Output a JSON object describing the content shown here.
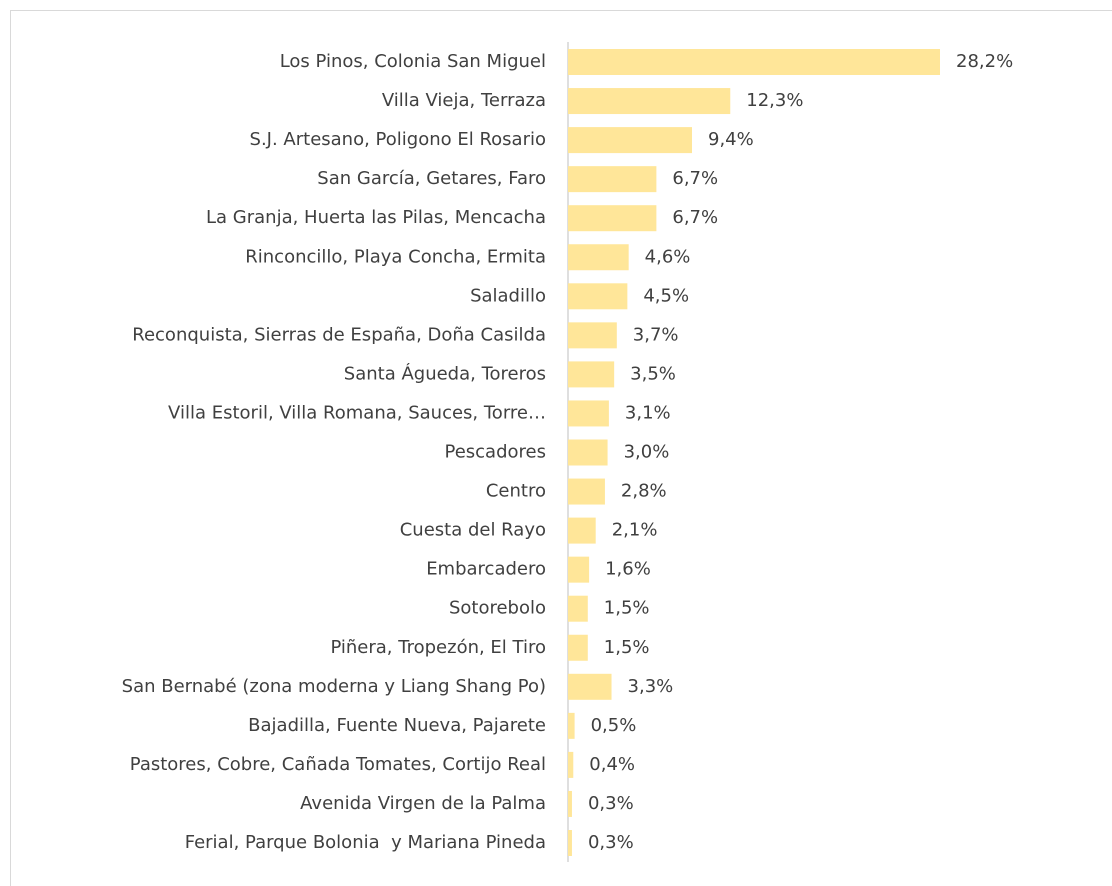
{
  "chart_data": {
    "type": "bar",
    "orientation": "horizontal",
    "color": "#ffe699",
    "categories": [
      "Los Pinos, Colonia San Miguel",
      "Villa Vieja, Terraza",
      "S.J. Artesano, Poligono El Rosario",
      "San García, Getares, Faro",
      "La Granja, Huerta las Pilas, Mencacha",
      "Rinconcillo, Playa Concha, Ermita",
      "Saladillo",
      "Reconquista, Sierras de España, Doña Casilda",
      "Santa Águeda, Toreros",
      "Villa Estoril, Villa Romana, Sauces, Torre…",
      "Pescadores",
      "Centro",
      "Cuesta del Rayo",
      "Embarcadero",
      "Sotorebolo",
      "Piñera, Tropezón, El Tiro",
      "San Bernabé (zona moderna y Liang Shang Po)",
      "Bajadilla, Fuente Nueva, Pajarete",
      "Pastores, Cobre, Cañada Tomates, Cortijo Real",
      "Avenida Virgen de la Palma",
      "Ferial, Parque Bolonia  y Mariana Pineda"
    ],
    "values": [
      28.2,
      12.3,
      9.4,
      6.7,
      6.7,
      4.6,
      4.5,
      3.7,
      3.5,
      3.1,
      3.0,
      2.8,
      2.1,
      1.6,
      1.5,
      1.5,
      3.3,
      0.5,
      0.4,
      0.3,
      0.3
    ],
    "value_labels": [
      "28,2%",
      "12,3%",
      "9,4%",
      "6,7%",
      "6,7%",
      "4,6%",
      "4,5%",
      "3,7%",
      "3,5%",
      "3,1%",
      "3,0%",
      "2,8%",
      "2,1%",
      "1,6%",
      "1,5%",
      "1,5%",
      "3,3%",
      "0,5%",
      "0,4%",
      "0,3%",
      "0,3%"
    ]
  }
}
